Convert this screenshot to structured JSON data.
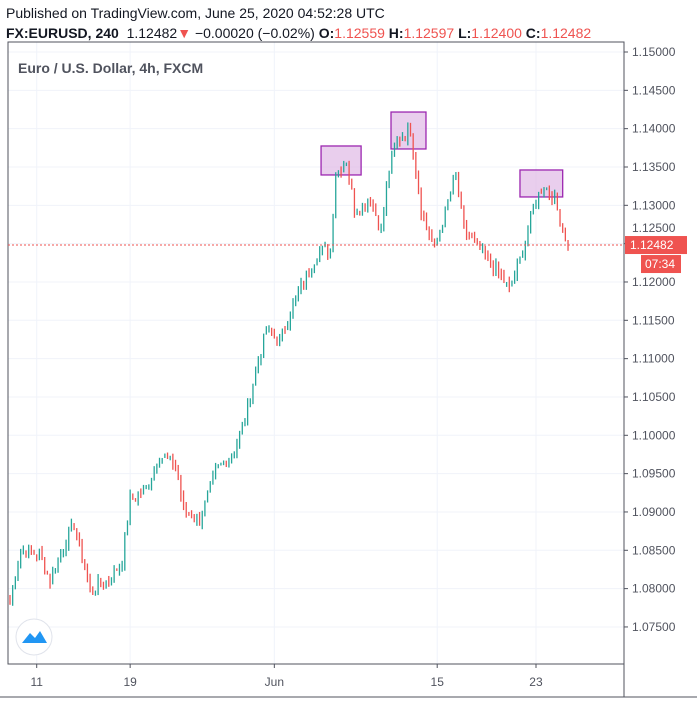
{
  "header": {
    "published": "Published on TradingView.com, June 25, 2020 04:52:28 UTC",
    "symbol": "FX:EURUSD, 240",
    "last": "1.12482",
    "arrow": "▼",
    "change": "−0.00020 (−0.02%)",
    "o_label": "O:",
    "o": "1.12559",
    "h_label": "H:",
    "h": "1.12597",
    "l_label": "L:",
    "l": "1.12400",
    "c_label": "C:",
    "c": "1.12482"
  },
  "legend": "Euro / U.S. Dollar, 4h, FXCM",
  "colors": {
    "up": "#26a69a",
    "down": "#ef5350",
    "box_fill": "#e1bee7",
    "box_stroke": "#9c27b0"
  },
  "chart_data": {
    "type": "ohlc",
    "title": "Euro / U.S. Dollar, 4h, FXCM",
    "ylim": [
      1.07,
      1.151
    ],
    "y_ticks": [
      "1.15000",
      "1.14500",
      "1.14000",
      "1.13500",
      "1.13000",
      "1.12500",
      "1.12000",
      "1.11500",
      "1.11000",
      "1.10500",
      "1.10000",
      "1.09500",
      "1.09000",
      "1.08500",
      "1.08000",
      "1.07500"
    ],
    "x_ticks": [
      {
        "label": "11",
        "bar": 10
      },
      {
        "label": "19",
        "bar": 45
      },
      {
        "label": "Jun",
        "bar": 99
      },
      {
        "label": "15",
        "bar": 160
      },
      {
        "label": "23",
        "bar": 197
      }
    ],
    "bar_count": 210,
    "close_path": [
      [
        0,
        1.0785
      ],
      [
        4,
        1.085
      ],
      [
        11,
        1.0844
      ],
      [
        15,
        1.081
      ],
      [
        21,
        1.0864
      ],
      [
        24,
        1.0884
      ],
      [
        30,
        1.0798
      ],
      [
        37,
        1.0811
      ],
      [
        42,
        1.0837
      ],
      [
        45,
        1.0916
      ],
      [
        51,
        1.0929
      ],
      [
        56,
        1.0974
      ],
      [
        62,
        1.0961
      ],
      [
        65,
        1.0903
      ],
      [
        71,
        1.0889
      ],
      [
        77,
        1.0954
      ],
      [
        84,
        1.098
      ],
      [
        88,
        1.102
      ],
      [
        92,
        1.1085
      ],
      [
        96,
        1.1137
      ],
      [
        101,
        1.1124
      ],
      [
        107,
        1.1177
      ],
      [
        112,
        1.1216
      ],
      [
        116,
        1.1242
      ],
      [
        120,
        1.1242
      ],
      [
        122,
        1.134
      ],
      [
        126,
        1.136
      ],
      [
        129,
        1.1294
      ],
      [
        135,
        1.1307
      ],
      [
        139,
        1.1268
      ],
      [
        142,
        1.1346
      ],
      [
        145,
        1.1385
      ],
      [
        150,
        1.1398
      ],
      [
        154,
        1.1294
      ],
      [
        159,
        1.1242
      ],
      [
        167,
        1.134
      ],
      [
        170,
        1.1268
      ],
      [
        176,
        1.1242
      ],
      [
        182,
        1.1216
      ],
      [
        187,
        1.119
      ],
      [
        191,
        1.1229
      ],
      [
        197,
        1.1307
      ],
      [
        200,
        1.1327
      ],
      [
        204,
        1.1307
      ],
      [
        207,
        1.1268
      ],
      [
        209,
        1.1248
      ]
    ],
    "last_price": "1.12482",
    "countdown": "07:34",
    "annotations": [
      {
        "type": "rect",
        "bars": [
          116.5,
          131.5
        ],
        "prices": [
          1.13396,
          1.13774
        ]
      },
      {
        "type": "rect",
        "bars": [
          142.7,
          155.8
        ],
        "prices": [
          1.13735,
          1.14217
        ]
      },
      {
        "type": "rect",
        "bars": [
          191,
          207
        ],
        "prices": [
          1.13109,
          1.13461
        ]
      }
    ]
  }
}
